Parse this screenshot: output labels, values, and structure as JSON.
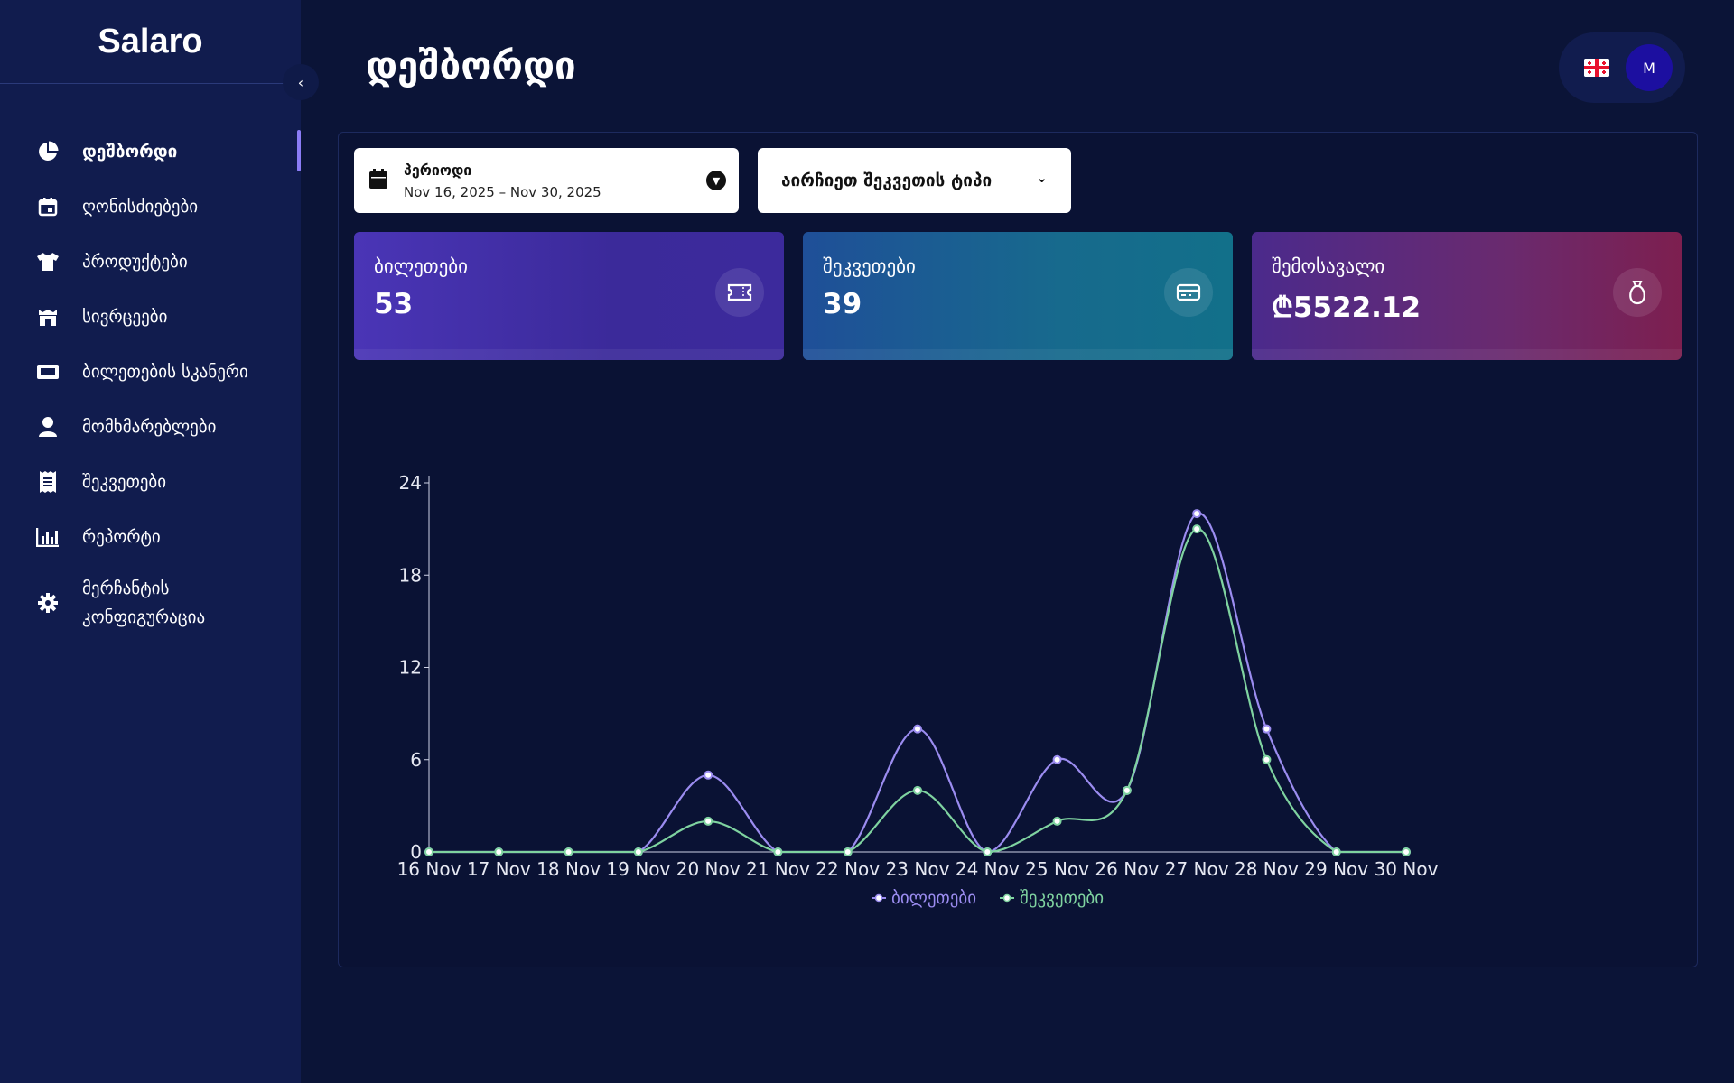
{
  "app": {
    "brand": "Salaro",
    "page_title": "დეშბორდი"
  },
  "sidebar": {
    "items": [
      {
        "label": "დეშბორდი",
        "icon": "pie-chart-icon",
        "active": true
      },
      {
        "label": "ღონისძიებები",
        "icon": "calendar-icon"
      },
      {
        "label": "პროდუქტები",
        "icon": "shirt-icon"
      },
      {
        "label": "სივრცეები",
        "icon": "venue-icon"
      },
      {
        "label": "ბილეთების სკანერი",
        "icon": "ticket-scanner-icon"
      },
      {
        "label": "მომხმარებლები",
        "icon": "user-icon"
      },
      {
        "label": "შეკვეთები",
        "icon": "receipt-icon"
      },
      {
        "label": "რეპორტი",
        "icon": "bar-chart-icon"
      },
      {
        "label_line1": "მერჩანტის",
        "label_line2": "კონფიგურაცია",
        "icon": "gear-icon"
      }
    ]
  },
  "user": {
    "avatar_initial": "M",
    "language_flag": "georgia-flag-icon"
  },
  "filters": {
    "period_label": "პერიოდი",
    "period_value": "Nov 16, 2025 – Nov 30, 2025",
    "order_type_placeholder": "აირჩიეთ შეკვეთის ტიპი"
  },
  "stats": [
    {
      "label": "ბილეთები",
      "value": "53",
      "icon": "ticket-icon"
    },
    {
      "label": "შეკვეთები",
      "value": "39",
      "icon": "card-icon"
    },
    {
      "label": "შემოსავალი",
      "value": "₾5522.12",
      "icon": "money-bag-icon"
    }
  ],
  "colors": {
    "accent": "#8b7cf6",
    "tickets_series": "#9b8cf0",
    "orders_series": "#7fd3a0"
  },
  "chart_data": {
    "type": "line",
    "categories": [
      "16 Nov",
      "17 Nov",
      "18 Nov",
      "19 Nov",
      "20 Nov",
      "21 Nov",
      "22 Nov",
      "23 Nov",
      "24 Nov",
      "25 Nov",
      "26 Nov",
      "27 Nov",
      "28 Nov",
      "29 Nov",
      "30 Nov"
    ],
    "series": [
      {
        "name": "ბილეთები",
        "values": [
          0,
          0,
          0,
          0,
          5,
          0,
          0,
          8,
          0,
          6,
          4,
          22,
          8,
          0,
          0
        ]
      },
      {
        "name": "შეკვეთები",
        "values": [
          0,
          0,
          0,
          0,
          2,
          0,
          0,
          4,
          0,
          2,
          4,
          21,
          6,
          0,
          0
        ]
      }
    ],
    "yticks": [
      0,
      6,
      12,
      18,
      24
    ],
    "ylim": [
      0,
      24
    ],
    "legend": "bottom-center",
    "grid": false
  }
}
